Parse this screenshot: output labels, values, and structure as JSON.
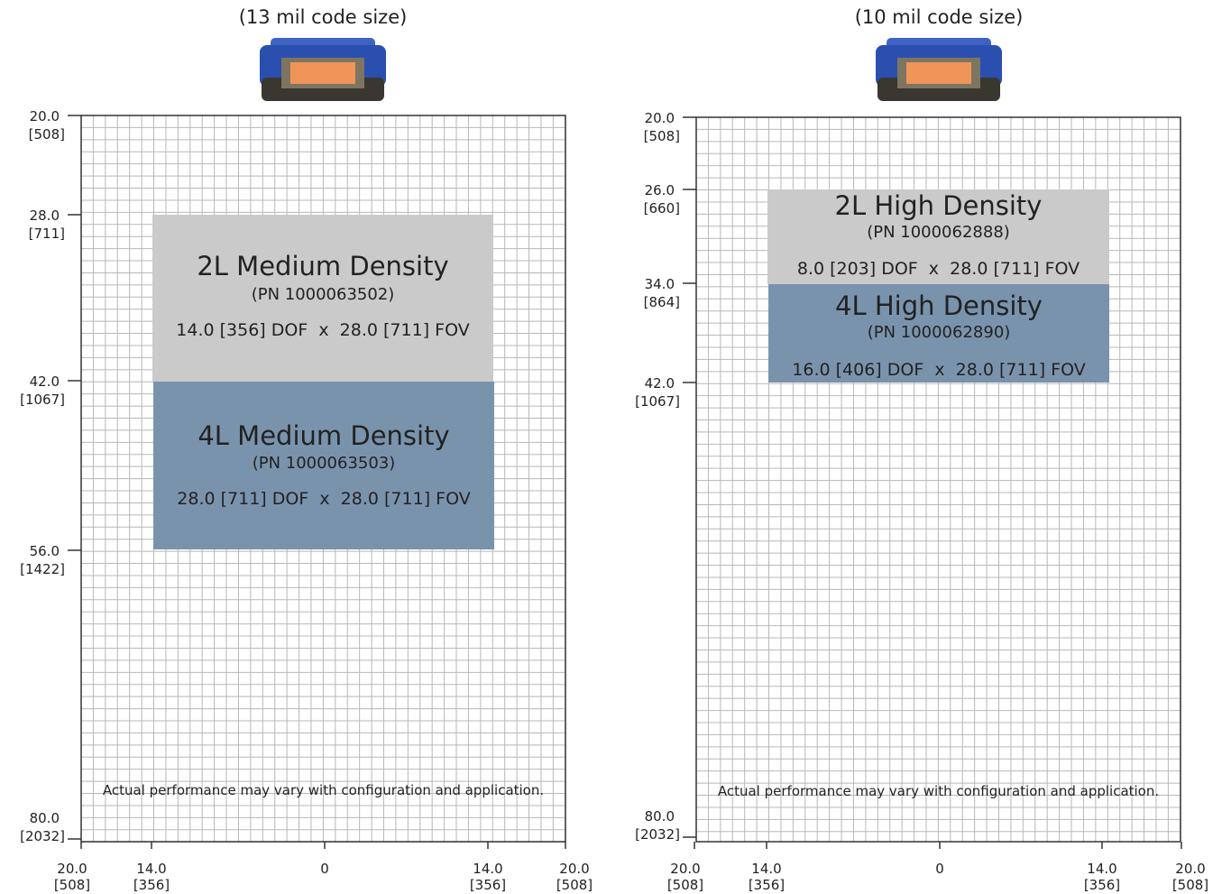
{
  "panels": [
    {
      "title": "(13 mil code size)",
      "y_axis": [
        {
          "value": "20.0",
          "metric": "[508]"
        },
        {
          "value": "28.0",
          "metric": "[711]"
        },
        {
          "value": "42.0",
          "metric": "[1067]"
        },
        {
          "value": "56.0",
          "metric": "[1422]"
        },
        {
          "value": "80.0",
          "metric": "[2032]"
        }
      ],
      "x_axis": [
        {
          "value": "20.0",
          "metric": "[508]"
        },
        {
          "value": "14.0",
          "metric": "[356]"
        },
        {
          "value": "0"
        },
        {
          "value": "14.0",
          "metric": "[356]"
        },
        {
          "value": "20.0",
          "metric": "[508]"
        }
      ],
      "zones": [
        {
          "name": "2L Medium Density",
          "part_number": "(PN 1000063502)",
          "spec": "14.0 [356] DOF  x  28.0 [711] FOV"
        },
        {
          "name": "4L Medium Density",
          "part_number": "(PN 1000063503)",
          "spec": "28.0 [711] DOF  x  28.0 [711] FOV"
        }
      ],
      "note": "Actual performance may vary with configuration and application."
    },
    {
      "title": "(10 mil code size)",
      "y_axis": [
        {
          "value": "20.0",
          "metric": "[508]"
        },
        {
          "value": "26.0",
          "metric": "[660]"
        },
        {
          "value": "34.0",
          "metric": "[864]"
        },
        {
          "value": "42.0",
          "metric": "[1067]"
        },
        {
          "value": "80.0",
          "metric": "[2032]"
        }
      ],
      "x_axis": [
        {
          "value": "20.0",
          "metric": "[508]"
        },
        {
          "value": "14.0",
          "metric": "[356]"
        },
        {
          "value": "0"
        },
        {
          "value": "14.0",
          "metric": "[356]"
        },
        {
          "value": "20.0",
          "metric": "[508]"
        }
      ],
      "zones": [
        {
          "name": "2L High Density",
          "part_number": "(PN 1000062888)",
          "spec": "8.0 [203] DOF  x  28.0 [711] FOV"
        },
        {
          "name": "4L High Density",
          "part_number": "(PN 1000062890)",
          "spec": "16.0 [406] DOF  x  28.0 [711] FOV"
        }
      ],
      "note": "Actual performance may vary with configuration and application."
    }
  ]
}
